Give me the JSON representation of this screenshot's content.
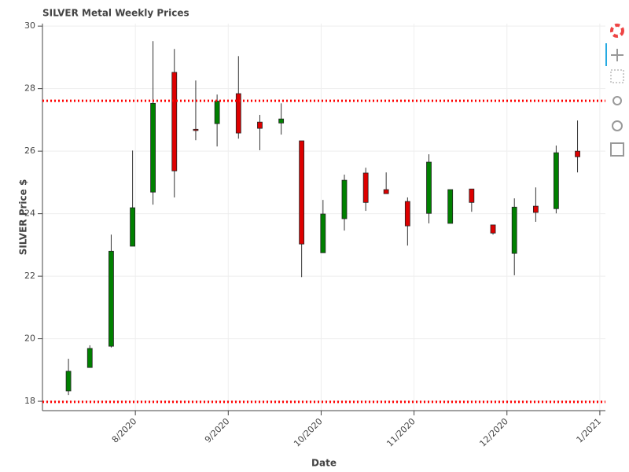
{
  "chart_data": {
    "type": "candlestick",
    "title": "SILVER Metal Weekly Prices",
    "x_label": "Date",
    "y_label": "SILVER Price $",
    "x": [
      7.28,
      7.51,
      7.74,
      7.97,
      8.19,
      8.42,
      8.65,
      8.88,
      9.11,
      9.34,
      9.57,
      9.79,
      10.02,
      10.25,
      10.48,
      10.7,
      10.93,
      11.16,
      11.39,
      11.62,
      11.85,
      12.08,
      12.31,
      12.53,
      12.76
    ],
    "open": [
      18.33,
      19.08,
      19.76,
      22.96,
      24.69,
      28.52,
      26.7,
      26.88,
      27.84,
      26.93,
      26.9,
      26.33,
      22.75,
      23.84,
      25.3,
      24.77,
      24.39,
      24.01,
      23.69,
      24.79,
      23.64,
      22.73,
      24.24,
      24.16,
      26.0
    ],
    "high": [
      19.36,
      19.79,
      23.33,
      26.02,
      29.52,
      29.27,
      28.26,
      27.81,
      29.04,
      27.16,
      27.53,
      26.33,
      24.44,
      25.25,
      25.47,
      25.32,
      24.52,
      25.9,
      24.77,
      24.79,
      23.64,
      24.49,
      24.84,
      26.18,
      26.98
    ],
    "low": [
      18.2,
      19.08,
      19.72,
      22.96,
      24.29,
      24.52,
      26.35,
      26.15,
      26.4,
      26.03,
      26.53,
      21.97,
      22.75,
      23.46,
      24.09,
      24.64,
      22.98,
      23.69,
      23.69,
      24.06,
      23.33,
      22.03,
      23.74,
      24.01,
      25.32
    ],
    "close": [
      18.96,
      19.69,
      22.8,
      24.19,
      27.53,
      25.37,
      26.66,
      27.6,
      26.58,
      26.73,
      27.03,
      23.03,
      23.99,
      25.07,
      24.36,
      24.64,
      23.61,
      25.65,
      24.77,
      24.36,
      23.38,
      24.21,
      24.04,
      25.95,
      25.82
    ],
    "increasing_color": "#008000",
    "decreasing_color": "#dd0000",
    "reference_lines": [
      27.61,
      17.98
    ],
    "reference_color": "#ff0000",
    "xlim": [
      7.0,
      13.06
    ],
    "ylim": [
      17.7,
      30.08
    ],
    "xticks": [
      {
        "value": 8,
        "label": "8/2020"
      },
      {
        "value": 9,
        "label": "9/2020"
      },
      {
        "value": 10,
        "label": "10/2020"
      },
      {
        "value": 11,
        "label": "11/2020"
      },
      {
        "value": 12,
        "label": "12/2020"
      },
      {
        "value": 13,
        "label": "1/2021"
      }
    ],
    "yticks": [
      18,
      20,
      22,
      24,
      26,
      28,
      30
    ],
    "grid": true
  }
}
